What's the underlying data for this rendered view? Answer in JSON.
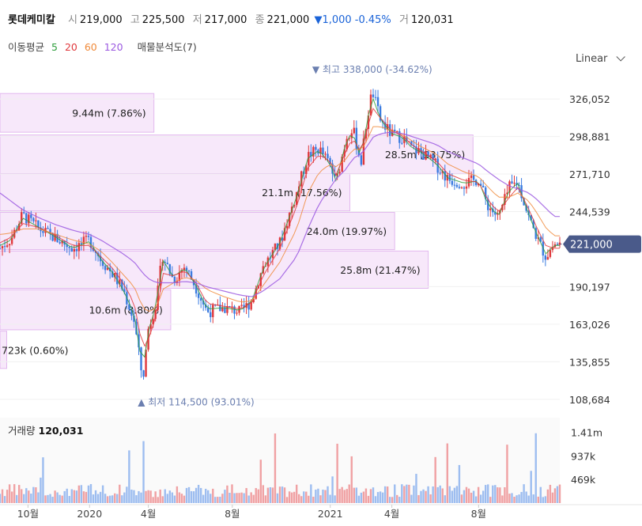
{
  "header": {
    "name": "롯데케미칼",
    "open_label": "시",
    "open": "219,000",
    "high_label": "고",
    "high": "225,500",
    "low_label": "저",
    "low": "217,000",
    "close_label": "종",
    "close": "221,000",
    "change": "▼1,000 -0.45%",
    "volume_label": "거",
    "volume": "120,031"
  },
  "indicators": {
    "title": "이동평균",
    "ma": [
      {
        "label": "5",
        "color": "#2e9e3c"
      },
      {
        "label": "20",
        "color": "#e0383c"
      },
      {
        "label": "60",
        "color": "#f08a3a"
      },
      {
        "label": "120",
        "color": "#9b59e0"
      }
    ],
    "volume_profile": "매물분석도(7)"
  },
  "scale_selector": {
    "label": "Linear",
    "icon": "chevron-down-icon"
  },
  "colors": {
    "up": "#e0383c",
    "down": "#3a7be0",
    "profile": "#f3dcf8",
    "current": "#4a5a8a"
  },
  "chart_data": {
    "type": "candlestick",
    "y_ticks": [
      "326,052",
      "298,881",
      "271,710",
      "244,539",
      "190,197",
      "163,026",
      "135,855",
      "108,684"
    ],
    "y_tick_values": [
      326052,
      298881,
      271710,
      244539,
      190197,
      163026,
      135855,
      108684
    ],
    "y_range": [
      100000,
      345000
    ],
    "current_price_label": "221,000",
    "current_price": 221000,
    "x_labels": [
      "10월",
      "2020",
      "4월",
      "8월",
      "2021",
      "4월",
      "8월"
    ],
    "x_label_positions": [
      0.05,
      0.16,
      0.265,
      0.415,
      0.59,
      0.7,
      0.855
    ],
    "high_marker": {
      "text": "▼ 최고",
      "value_text": "338,000 (-34.62%)",
      "value": 338000,
      "x": 0.665
    },
    "low_marker": {
      "text": "▲ 최저",
      "value_text": "114,500 (93.01%)",
      "value": 114500,
      "x": 0.257
    },
    "volume_profile": [
      {
        "label": "9.44m (7.86%)",
        "low": 302000,
        "high": 330000,
        "share": 0.275
      },
      {
        "label": "28.5m (23.75%)",
        "low": 272000,
        "high": 300000,
        "share": 0.845
      },
      {
        "label": "21.1m (17.56%)",
        "low": 245000,
        "high": 272000,
        "share": 0.625
      },
      {
        "label": "24.0m (19.97%)",
        "low": 217000,
        "high": 244000,
        "share": 0.705
      },
      {
        "label": "25.8m (21.47%)",
        "low": 189000,
        "high": 216000,
        "share": 0.765
      },
      {
        "label": "10.6m (8.80%)",
        "low": 159000,
        "high": 188000,
        "share": 0.305
      },
      {
        "label": "723k (0.60%)",
        "low": 131000,
        "high": 158000,
        "share": 0.012
      }
    ],
    "volume": {
      "label": "거래량",
      "value": "120,031",
      "y_ticks": [
        "1.41m",
        "937k",
        "469k"
      ],
      "y_tick_values": [
        1410000,
        937000,
        469000
      ],
      "max": 1700000
    },
    "price_path": {
      "x": [
        0,
        0.02,
        0.04,
        0.07,
        0.1,
        0.13,
        0.16,
        0.18,
        0.2,
        0.22,
        0.24,
        0.255,
        0.265,
        0.28,
        0.29,
        0.31,
        0.33,
        0.35,
        0.37,
        0.4,
        0.43,
        0.45,
        0.47,
        0.5,
        0.53,
        0.55,
        0.57,
        0.59,
        0.6,
        0.62,
        0.63,
        0.645,
        0.655,
        0.665,
        0.68,
        0.7,
        0.72,
        0.735,
        0.75,
        0.78,
        0.8,
        0.83,
        0.855,
        0.87,
        0.89,
        0.91,
        0.925,
        0.945,
        0.96,
        0.975,
        0.99
      ],
      "y": [
        218000,
        225000,
        242000,
        232000,
        225000,
        218000,
        224000,
        210000,
        200000,
        188000,
        165000,
        122000,
        160000,
        180000,
        213000,
        195000,
        205000,
        190000,
        172000,
        175000,
        172000,
        180000,
        205000,
        222000,
        258000,
        285000,
        290000,
        278000,
        265000,
        300000,
        305000,
        280000,
        310000,
        332000,
        310000,
        300000,
        298000,
        290000,
        288000,
        278000,
        268000,
        265000,
        268000,
        250000,
        240000,
        262000,
        266000,
        240000,
        225000,
        212000,
        221000
      ]
    },
    "ma_path": {
      "5": [
        220000,
        224000,
        240000,
        233000,
        226000,
        218000,
        223000,
        210000,
        201000,
        188000,
        170000,
        130000,
        158000,
        178000,
        210000,
        197000,
        204000,
        191000,
        174000,
        175000,
        173000,
        180000,
        203000,
        222000,
        255000,
        283000,
        289000,
        279000,
        267000,
        297000,
        302000,
        283000,
        308000,
        328000,
        311000,
        301000,
        298000,
        291000,
        288000,
        279000,
        269000,
        265000,
        267000,
        251000,
        241000,
        260000,
        265000,
        242000,
        227000,
        214000,
        220000
      ],
      "20": [
        222000,
        226000,
        236000,
        233000,
        227000,
        220000,
        220000,
        212000,
        204000,
        193000,
        178000,
        145000,
        152000,
        170000,
        200000,
        198000,
        202000,
        193000,
        178000,
        176000,
        174000,
        179000,
        198000,
        218000,
        248000,
        276000,
        286000,
        281000,
        271000,
        290000,
        298000,
        287000,
        302000,
        320000,
        312000,
        303000,
        299000,
        293000,
        289000,
        281000,
        272000,
        267000,
        266000,
        254000,
        244000,
        255000,
        262000,
        246000,
        232000,
        220000,
        218000
      ],
      "60": [
        228000,
        229000,
        232000,
        232000,
        228000,
        224000,
        221000,
        216000,
        208000,
        199000,
        190000,
        175000,
        172000,
        175000,
        188000,
        193000,
        197000,
        195000,
        188000,
        183000,
        179000,
        180000,
        191000,
        208000,
        232000,
        258000,
        273000,
        279000,
        277000,
        283000,
        290000,
        289000,
        295000,
        306000,
        306000,
        303000,
        300000,
        296000,
        292000,
        286000,
        279000,
        273000,
        270000,
        263000,
        255000,
        255000,
        258000,
        252000,
        243000,
        233000,
        227000
      ],
      "120": [
        258000,
        252000,
        246000,
        240000,
        235000,
        231000,
        228000,
        224000,
        219000,
        214000,
        208000,
        200000,
        196000,
        193000,
        193000,
        193000,
        194000,
        193000,
        190000,
        187000,
        184000,
        183000,
        187000,
        196000,
        212000,
        232000,
        250000,
        262000,
        268000,
        276000,
        283000,
        286000,
        291000,
        298000,
        301000,
        302000,
        301000,
        299000,
        297000,
        293000,
        288000,
        283000,
        279000,
        274000,
        268000,
        263000,
        261000,
        258000,
        253000,
        247000,
        241000
      ]
    }
  }
}
